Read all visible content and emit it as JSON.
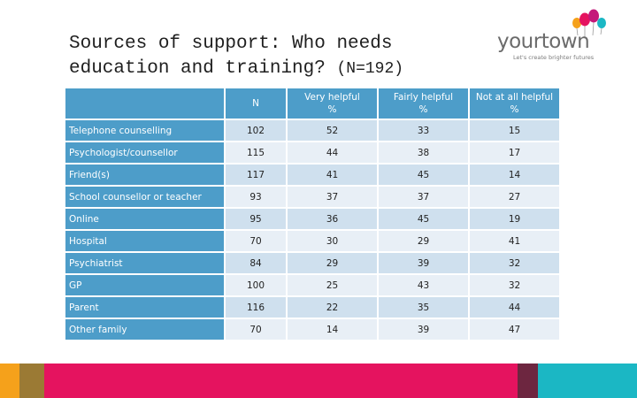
{
  "slide": {
    "title_line1": "Sources of support: Who needs",
    "title_line2": "education and training?",
    "title_n": "(N=192)"
  },
  "logo": {
    "word": "yourtown",
    "tagline": "Let's create brighter futures"
  },
  "table": {
    "headers": {
      "n": "N",
      "very_1": "Very helpful",
      "very_2": "%",
      "fairly_1": "Fairly helpful",
      "fairly_2": "%",
      "not_1": "Not at all helpful",
      "not_2": "%"
    },
    "rows": [
      {
        "label": "Telephone counselling",
        "n": "102",
        "very": "52",
        "fairly": "33",
        "not": "15"
      },
      {
        "label": "Psychologist/counsellor",
        "n": "115",
        "very": "44",
        "fairly": "38",
        "not": "17"
      },
      {
        "label": "Friend(s)",
        "n": "117",
        "very": "41",
        "fairly": "45",
        "not": "14"
      },
      {
        "label": "School counsellor or teacher",
        "n": "93",
        "very": "37",
        "fairly": "37",
        "not": "27"
      },
      {
        "label": "Online",
        "n": "95",
        "very": "36",
        "fairly": "45",
        "not": "19"
      },
      {
        "label": "Hospital",
        "n": "70",
        "very": "30",
        "fairly": "29",
        "not": "41"
      },
      {
        "label": "Psychiatrist",
        "n": "84",
        "very": "29",
        "fairly": "39",
        "not": "32"
      },
      {
        "label": "GP",
        "n": "100",
        "very": "25",
        "fairly": "43",
        "not": "32"
      },
      {
        "label": "Parent",
        "n": "116",
        "very": "22",
        "fairly": "35",
        "not": "44"
      },
      {
        "label": "Other family",
        "n": "70",
        "very": "14",
        "fairly": "39",
        "not": "47"
      }
    ]
  },
  "colors": {
    "header_blue": "#4d9dc9",
    "row_dark": "#cfe0ee",
    "row_light": "#e8eff6",
    "footer": [
      "#f5a11b",
      "#9b7a34",
      "#e5135f",
      "#6d2640",
      "#1bb7c4"
    ]
  }
}
